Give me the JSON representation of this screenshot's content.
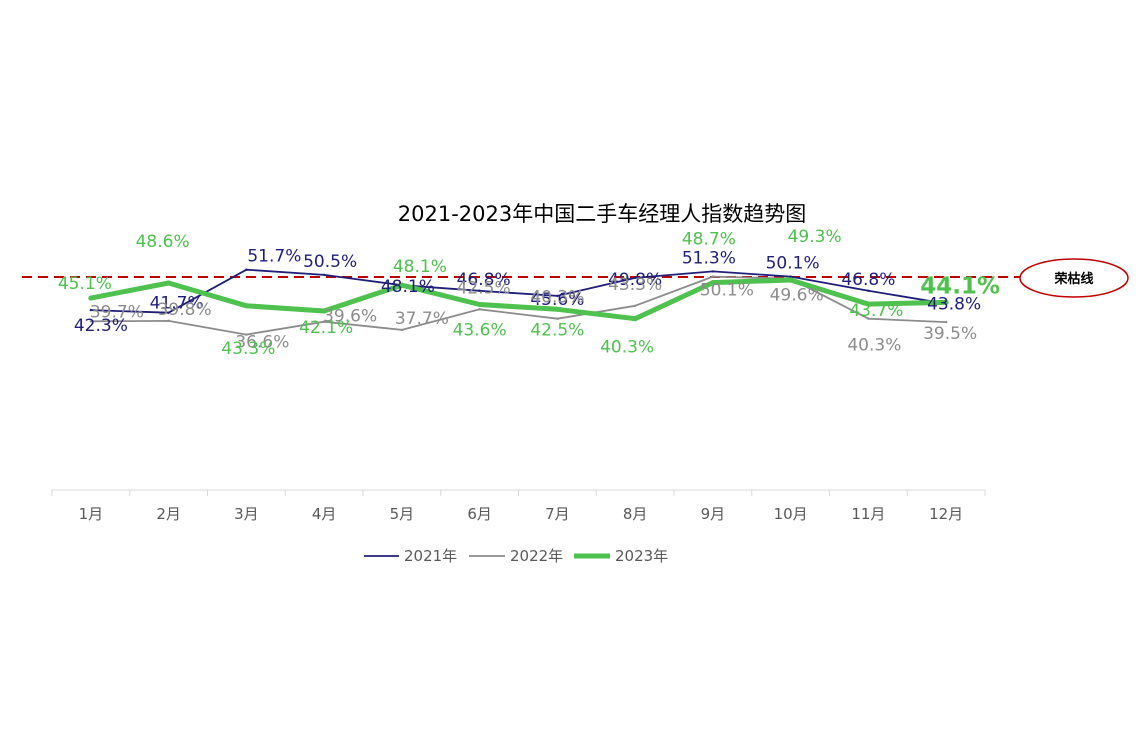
{
  "chart_data": {
    "type": "line",
    "title": "2021-2023年中国二手车经理人指数趋势图",
    "xlabel": "",
    "ylabel": "",
    "categories": [
      "1月",
      "2月",
      "3月",
      "4月",
      "5月",
      "6月",
      "7月",
      "8月",
      "9月",
      "10月",
      "11月",
      "12月"
    ],
    "ylim": [
      30,
      60
    ],
    "grid": false,
    "legend_position": "bottom",
    "reference_line": {
      "value": 50,
      "label": "荣枯线",
      "color": "#c00000"
    },
    "series": [
      {
        "name": "2021年",
        "color": "#1f1f7a",
        "values": [
          42.3,
          41.7,
          51.7,
          50.5,
          48.1,
          46.8,
          45.6,
          49.8,
          51.3,
          50.1,
          46.8,
          43.8
        ],
        "labels": [
          "42.3%",
          "41.7%",
          "51.7%",
          "50.5%",
          "48.1%",
          "46.8%",
          "45.6%",
          "49.8%",
          "51.3%",
          "50.1%",
          "46.8%",
          "43.8%"
        ]
      },
      {
        "name": "2022年",
        "color": "#8c8c8c",
        "values": [
          39.7,
          39.8,
          36.6,
          39.6,
          37.7,
          42.5,
          40.3,
          43.3,
          50.1,
          49.6,
          40.3,
          39.5
        ],
        "labels": [
          "39.7%",
          "39.8%",
          "36.6%",
          "39.6%",
          "37.7%",
          "42.5%",
          "40.3%",
          "43.3%",
          "50.1%",
          "49.6%",
          "40.3%",
          "39.5%"
        ]
      },
      {
        "name": "2023年",
        "color": "#4ec14e",
        "values": [
          45.1,
          48.6,
          43.3,
          42.1,
          48.1,
          43.6,
          42.5,
          40.3,
          48.7,
          49.3,
          43.7,
          44.1
        ],
        "labels": [
          "45.1%",
          "48.6%",
          "43.3%",
          "42.1%",
          "48.1%",
          "43.6%",
          "42.5%",
          "40.3%",
          "48.7%",
          "49.3%",
          "43.7%",
          "44.1%"
        ]
      }
    ]
  }
}
